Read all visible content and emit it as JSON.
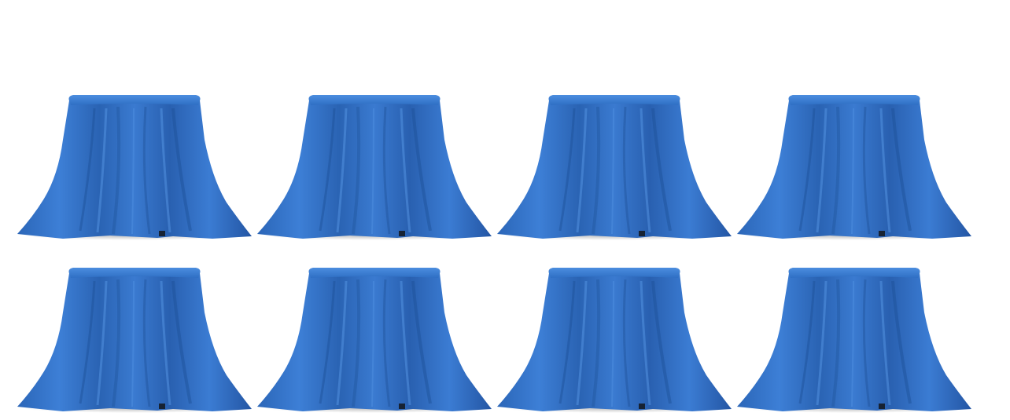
{
  "scene": {
    "background_color": "#ffffff",
    "object": "blue-draped-cloth",
    "object_count": 8,
    "rows": 2,
    "columns": 4,
    "cloth_color": "#2d6fc6",
    "cloth_shadow_color": "#1d4f96",
    "cloth_highlight_color": "#4c8fe0"
  }
}
